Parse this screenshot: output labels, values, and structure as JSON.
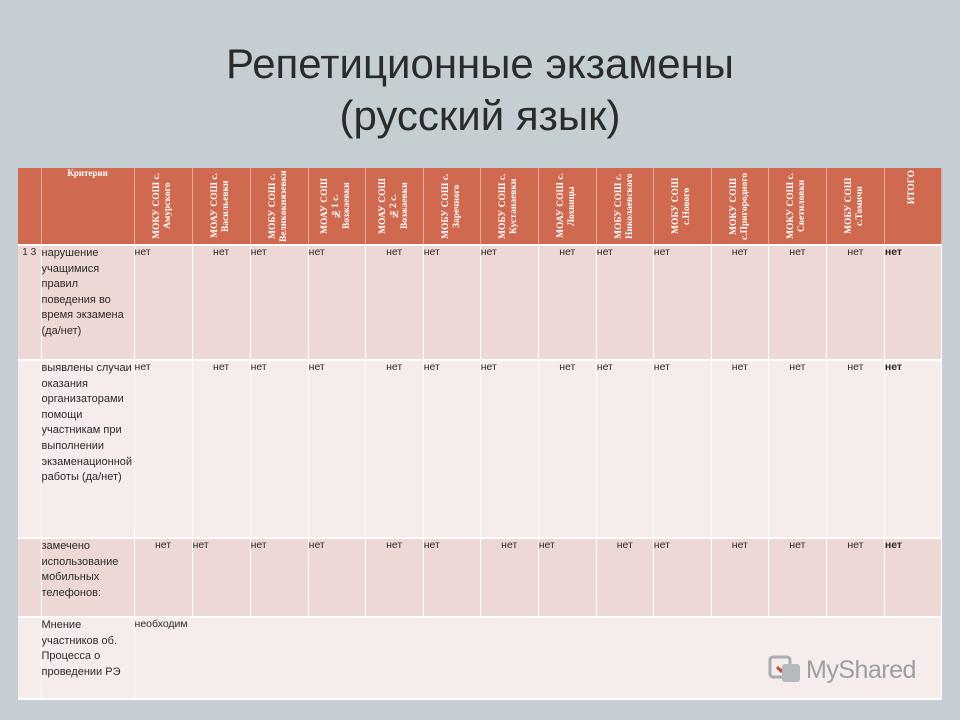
{
  "title_line1": "Репетиционные экзамены",
  "title_line2": "(русский язык)",
  "table": {
    "criteria_header": "Критерии",
    "schools": [
      "МОКУ СОШ с. Амурского",
      "МОАУ СОШ с. Васильевки",
      "МОБУ СОШ с. Великокнязевки",
      "МОАУ СОШ №1 с. Возжаевки",
      "МОАУ СОШ №2 с. Возжаевки",
      "МОБУ СОШ с. Заречного",
      "МОБУ СОШ с. Кустанаевки",
      "МОАУ СОШ с. Лохвицы",
      "МОБУ СОШ с. Николаевского",
      "МОБУ СОШ с.Нового",
      "МОКУ СОШ с.Пригородного",
      "МОКУ СОШ с. Светиловки",
      "МОБУ СОШ с.Томичи"
    ],
    "total_header": "ИТОГО",
    "rows": [
      {
        "num": "1 3",
        "criterion": "нарушение учащимися правил поведения во время экзамена (да/нет)",
        "values": [
          "нет",
          "нет",
          "нет",
          "нет",
          "нет",
          "нет",
          "нет",
          "нет",
          "нет",
          "нет",
          "нет",
          "нет",
          "нет"
        ],
        "total": "нет"
      },
      {
        "num": "",
        "criterion": "выявлены случаи оказания организаторами помощи участникам при выполнении экзаменационной работы (да/нет)",
        "values": [
          "нет",
          "нет",
          "нет",
          "нет",
          "нет",
          "нет",
          "нет",
          "нет",
          "нет",
          "нет",
          "нет",
          "нет",
          "нет"
        ],
        "total": "нет"
      },
      {
        "num": "",
        "criterion": "замечено использование мобильных телефонов:",
        "values": [
          "нет",
          "нет",
          "нет",
          "нет",
          "нет",
          "нет",
          "нет",
          "нет",
          "нет",
          "нет",
          "нет",
          "нет",
          "нет"
        ],
        "total": "нет"
      },
      {
        "num": "",
        "criterion": "Мнение участников об. Процесса о проведении РЭ",
        "values": [
          "необходим"
        ],
        "total": ""
      }
    ]
  },
  "watermark": {
    "text": "MyShared"
  }
}
